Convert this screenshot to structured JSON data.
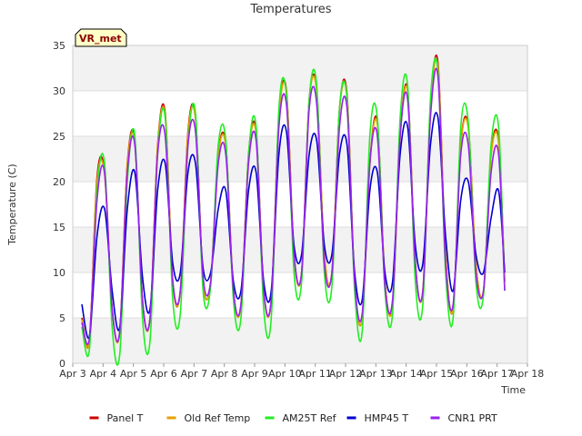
{
  "chart_data": {
    "type": "line",
    "title": "Temperatures",
    "xlabel": "Time",
    "ylabel": "Temperature (C)",
    "badge": "VR_met",
    "xlim": [
      3,
      18
    ],
    "ylim": [
      0,
      35
    ],
    "y_ticks": [
      0,
      5,
      10,
      15,
      20,
      25,
      30,
      35
    ],
    "x_ticks": [
      {
        "value": 3,
        "label": "Apr 3"
      },
      {
        "value": 4,
        "label": "Apr 4"
      },
      {
        "value": 5,
        "label": "Apr 5"
      },
      {
        "value": 6,
        "label": "Apr 6"
      },
      {
        "value": 7,
        "label": "Apr 7"
      },
      {
        "value": 8,
        "label": "Apr 8"
      },
      {
        "value": 9,
        "label": "Apr 9"
      },
      {
        "value": 10,
        "label": "Apr 10"
      },
      {
        "value": 11,
        "label": "Apr 11"
      },
      {
        "value": 12,
        "label": "Apr 12"
      },
      {
        "value": 13,
        "label": "Apr 13"
      },
      {
        "value": 14,
        "label": "Apr 14"
      },
      {
        "value": 15,
        "label": "Apr 15"
      },
      {
        "value": 16,
        "label": "Apr 16"
      },
      {
        "value": 17,
        "label": "Apr 17"
      },
      {
        "value": 18,
        "label": "Apr 18"
      }
    ],
    "series": [
      {
        "name": "Panel T",
        "color": "#cc0000",
        "x": [
          3.3,
          3.55,
          3.8,
          4.05,
          4.3,
          4.55,
          4.8,
          5.05,
          5.3,
          5.55,
          5.8,
          6.05,
          6.3,
          6.55,
          6.8,
          7.05,
          7.3,
          7.55,
          7.8,
          8.05,
          8.3,
          8.55,
          8.8,
          9.05,
          9.3,
          9.55,
          9.8,
          10.05,
          10.3,
          10.55,
          10.8,
          11.05,
          11.3,
          11.55,
          11.8,
          12.05,
          12.3,
          12.55,
          12.8,
          13.05,
          13.3,
          13.55,
          13.8,
          14.05,
          14.3,
          14.55,
          14.8,
          15.05,
          15.3,
          15.55,
          15.8,
          16.05,
          16.3,
          16.55,
          16.8,
          17.05,
          17.25
        ],
        "y": [
          5,
          2.5,
          20.5,
          21,
          6,
          3.5,
          22,
          24.5,
          7,
          5,
          24,
          27.5,
          9,
          8,
          25.5,
          27,
          9,
          9,
          23,
          24,
          8,
          6.5,
          23,
          25.5,
          8,
          7,
          27,
          30,
          12,
          10,
          29,
          30,
          12,
          10,
          28,
          29.5,
          9,
          5,
          22,
          26.5,
          9,
          6.5,
          25,
          30,
          11,
          8,
          28,
          33,
          12,
          6,
          24,
          26,
          11,
          8,
          23,
          24.5,
          9
        ]
      },
      {
        "name": "Old Ref Temp",
        "color": "#e6a000",
        "x": [
          3.3,
          3.55,
          3.8,
          4.05,
          4.3,
          4.55,
          4.8,
          5.05,
          5.3,
          5.55,
          5.8,
          6.05,
          6.3,
          6.55,
          6.8,
          7.05,
          7.3,
          7.55,
          7.8,
          8.05,
          8.3,
          8.55,
          8.8,
          9.05,
          9.3,
          9.55,
          9.8,
          10.05,
          10.3,
          10.55,
          10.8,
          11.05,
          11.3,
          11.55,
          11.8,
          12.05,
          12.3,
          12.55,
          12.8,
          13.05,
          13.3,
          13.55,
          13.8,
          14.05,
          14.3,
          14.55,
          14.8,
          15.05,
          15.3,
          15.55,
          15.8,
          16.05,
          16.3,
          16.55,
          16.8,
          17.05,
          17.25
        ],
        "y": [
          4.8,
          2.4,
          20,
          20.8,
          6,
          3.4,
          21.8,
          24.2,
          7,
          5,
          23.8,
          27.2,
          9,
          8,
          25.2,
          26.8,
          9,
          9,
          22.8,
          23.8,
          8,
          6.4,
          22.8,
          25.2,
          8,
          7,
          26.8,
          29.8,
          12,
          10,
          28.8,
          29.8,
          12,
          10,
          27.8,
          29.2,
          9,
          5,
          21.8,
          26.2,
          9,
          6.4,
          24.8,
          29.8,
          11,
          8,
          27.8,
          32.6,
          12,
          6,
          23.8,
          25.8,
          11,
          8,
          22.8,
          24.2,
          9
        ]
      },
      {
        "name": "AM25T Ref",
        "color": "#22ee22",
        "x": [
          3.3,
          3.55,
          3.8,
          4.05,
          4.3,
          4.55,
          4.8,
          5.05,
          5.3,
          5.55,
          5.8,
          6.05,
          6.3,
          6.55,
          6.8,
          7.05,
          7.3,
          7.55,
          7.8,
          8.05,
          8.3,
          8.55,
          8.8,
          9.05,
          9.3,
          9.55,
          9.8,
          10.05,
          10.3,
          10.55,
          10.8,
          11.05,
          11.3,
          11.55,
          11.8,
          12.05,
          12.3,
          12.55,
          12.8,
          13.05,
          13.3,
          13.55,
          13.8,
          14.05,
          14.3,
          14.55,
          14.8,
          15.05,
          15.3,
          15.55,
          15.8,
          16.05,
          16.3,
          16.55,
          16.8,
          17.05,
          17.25
        ],
        "y": [
          4,
          1.5,
          19,
          22,
          4,
          1,
          20,
          25,
          5,
          2.5,
          23,
          27,
          7,
          5.5,
          24,
          27.5,
          8,
          8.5,
          24,
          24.5,
          7,
          5,
          23,
          26,
          6,
          5,
          28,
          29.5,
          10,
          9,
          29,
          30.5,
          10,
          8.5,
          28,
          29,
          8,
          3.5,
          25,
          27,
          8,
          5.5,
          27,
          30.5,
          9,
          6.5,
          29,
          32,
          10,
          5,
          26,
          26.5,
          9,
          7.5,
          24,
          26,
          8
        ]
      },
      {
        "name": "HMP45 T",
        "color": "#0000cc",
        "x": [
          3.3,
          3.55,
          3.8,
          4.05,
          4.3,
          4.55,
          4.8,
          5.05,
          5.3,
          5.55,
          5.8,
          6.05,
          6.3,
          6.55,
          6.8,
          7.05,
          7.3,
          7.55,
          7.8,
          8.05,
          8.3,
          8.55,
          8.8,
          9.05,
          9.3,
          9.55,
          9.8,
          10.05,
          10.3,
          10.55,
          10.8,
          11.05,
          11.3,
          11.55,
          11.8,
          12.05,
          12.3,
          12.55,
          12.8,
          13.05,
          13.3,
          13.55,
          13.8,
          14.05,
          14.3,
          14.55,
          14.8,
          15.05,
          15.3,
          15.55,
          15.8,
          16.05,
          16.3,
          16.55,
          16.8,
          17.05,
          17.25
        ],
        "y": [
          6.5,
          3,
          14,
          17,
          8,
          4,
          17,
          21,
          9.5,
          6,
          19,
          22,
          11,
          10,
          21,
          22,
          10.5,
          10,
          17,
          19,
          9,
          8,
          19,
          21,
          9,
          8,
          23,
          25.5,
          13,
          12,
          23,
          24.5,
          13,
          12,
          23,
          24,
          10,
          7,
          19,
          21,
          10,
          9,
          23,
          26,
          13,
          11,
          24,
          27,
          14,
          8,
          18,
          20,
          12,
          10,
          16,
          19,
          10
        ]
      },
      {
        "name": "CNR1 PRT",
        "color": "#9922ee",
        "x": [
          3.3,
          3.55,
          3.8,
          4.05,
          4.3,
          4.55,
          4.8,
          5.05,
          5.3,
          5.55,
          5.8,
          6.05,
          6.3,
          6.55,
          6.8,
          7.05,
          7.3,
          7.55,
          7.8,
          8.05,
          8.3,
          8.55,
          8.8,
          9.05,
          9.3,
          9.55,
          9.8,
          10.05,
          10.3,
          10.55,
          10.8,
          11.05,
          11.3,
          11.55,
          11.8,
          12.05,
          12.3,
          12.55,
          12.8,
          13.05,
          13.3,
          13.55,
          13.8,
          14.05,
          14.3,
          14.55,
          14.8,
          15.05,
          15.3,
          15.55,
          15.8,
          16.05,
          16.3,
          16.55,
          16.8,
          17.05,
          17.25
        ],
        "y": [
          4.5,
          2.8,
          18,
          21,
          6,
          3.5,
          21,
          24,
          7,
          5,
          23,
          25,
          9,
          8,
          24,
          25.5,
          9.5,
          9,
          22,
          23,
          8,
          6.5,
          22,
          24.5,
          8,
          7,
          26,
          28.5,
          12,
          10,
          28,
          28.5,
          11,
          10,
          26,
          28,
          9,
          5.5,
          22,
          25,
          8.5,
          7,
          25,
          29,
          11,
          8,
          27,
          31.5,
          11,
          6.5,
          23,
          24,
          10,
          8,
          21,
          23,
          8
        ]
      }
    ]
  }
}
